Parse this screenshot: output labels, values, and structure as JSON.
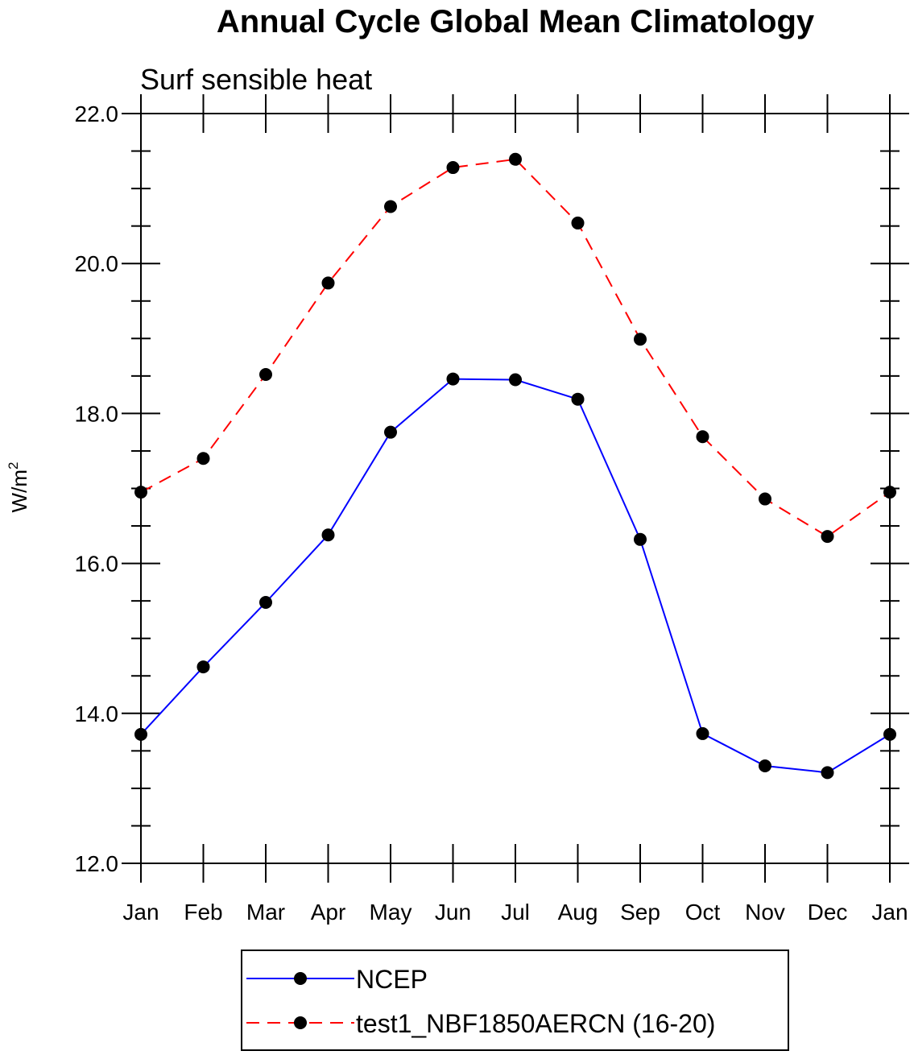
{
  "chart_data": {
    "type": "line",
    "title": "Annual Cycle Global Mean Climatology",
    "subtitle": "Surf sensible heat",
    "ylabel": "W/m",
    "ylabel_superscript": "2",
    "xlabel": "",
    "ylim": [
      12.0,
      22.0
    ],
    "y_major_ticks": [
      "12.0",
      "14.0",
      "16.0",
      "18.0",
      "20.0",
      "22.0"
    ],
    "categories": [
      "Jan",
      "Feb",
      "Mar",
      "Apr",
      "May",
      "Jun",
      "Jul",
      "Aug",
      "Sep",
      "Oct",
      "Nov",
      "Dec",
      "Jan"
    ],
    "grid": false,
    "legend_position": "bottom",
    "series": [
      {
        "name": "NCEP",
        "color": "#0000ff",
        "line_style": "solid",
        "marker": "filled-circle",
        "values": [
          13.72,
          14.62,
          15.48,
          16.38,
          17.75,
          18.46,
          18.45,
          18.19,
          16.32,
          13.73,
          13.3,
          13.21,
          13.72
        ]
      },
      {
        "name": "test1_NBF1850AERCN (16-20)",
        "color": "#ff0000",
        "line_style": "dashed",
        "marker": "filled-circle",
        "values": [
          16.95,
          17.4,
          18.52,
          19.74,
          20.76,
          21.28,
          21.39,
          20.54,
          18.99,
          17.69,
          16.86,
          16.36,
          16.95
        ]
      }
    ]
  }
}
